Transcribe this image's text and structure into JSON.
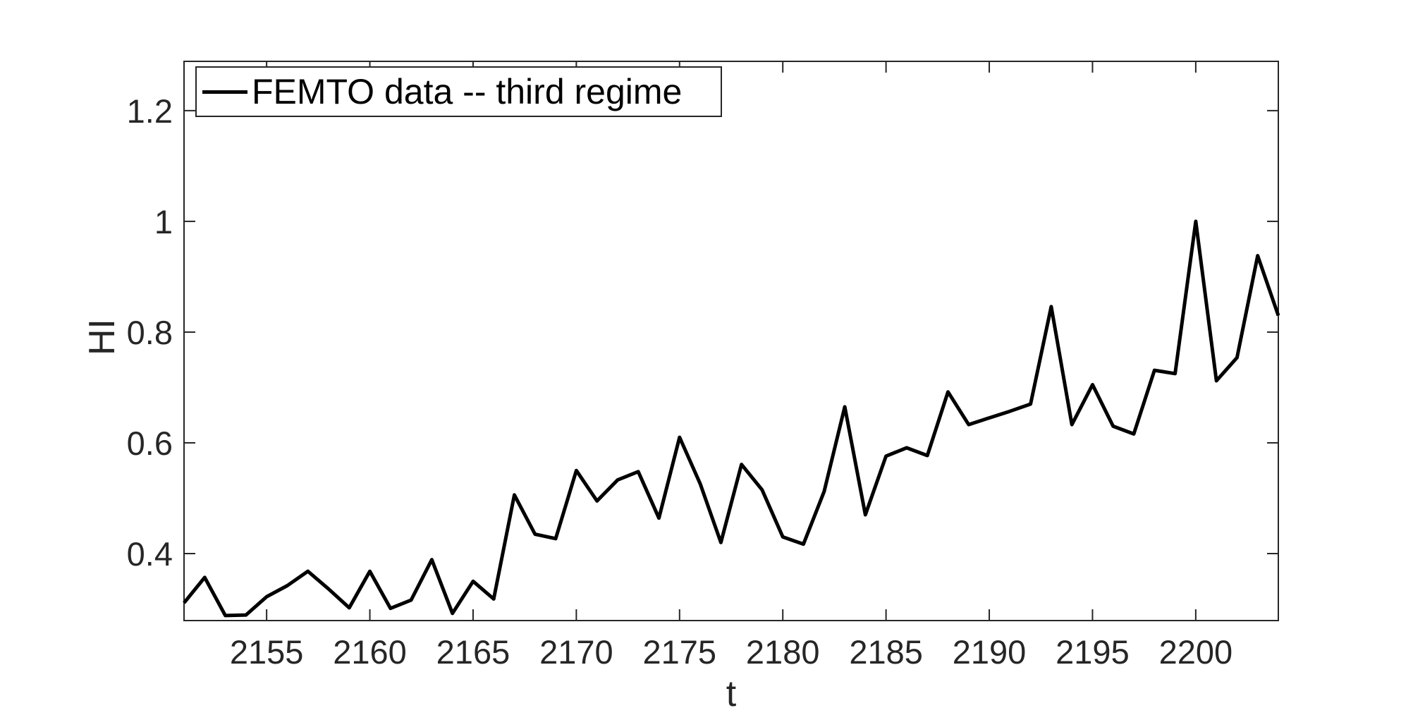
{
  "figure": {
    "background": "#ffffff",
    "axis_color": "#262626",
    "line_color": "#000000"
  },
  "chart_data": {
    "type": "line",
    "title": "",
    "xlabel": "t",
    "ylabel": "HI",
    "legend": {
      "label": "FEMTO data -- third regime",
      "position": "northwest",
      "line_color": "#000000"
    },
    "grid": false,
    "box": true,
    "tick_direction": "in",
    "xlim": [
      2151,
      2204
    ],
    "ylim": [
      0.279,
      1.289
    ],
    "xticks": {
      "values": [
        2155,
        2160,
        2165,
        2170,
        2175,
        2180,
        2185,
        2190,
        2195,
        2200
      ],
      "labels": [
        "2155",
        "2160",
        "2165",
        "2170",
        "2175",
        "2180",
        "2185",
        "2190",
        "2195",
        "2200"
      ]
    },
    "yticks": {
      "values": [
        0.4,
        0.6,
        0.8,
        1,
        1.2
      ],
      "labels": [
        "0.4",
        "0.6",
        "0.8",
        "1",
        "1.2"
      ]
    },
    "series": [
      {
        "name": "FEMTO data -- third regime",
        "color": "#000000",
        "x": [
          2151,
          2152,
          2153,
          2154,
          2155,
          2156,
          2157,
          2158,
          2159,
          2160,
          2161,
          2162,
          2163,
          2164,
          2165,
          2166,
          2167,
          2168,
          2169,
          2170,
          2171,
          2172,
          2173,
          2174,
          2175,
          2176,
          2177,
          2178,
          2179,
          2180,
          2181,
          2182,
          2183,
          2184,
          2185,
          2186,
          2187,
          2188,
          2189,
          2190,
          2191,
          2192,
          2193,
          2194,
          2195,
          2196,
          2197,
          2198,
          2199,
          2200,
          2201,
          2202,
          2203,
          2204
        ],
        "y": [
          0.311,
          0.357,
          0.288,
          0.289,
          0.322,
          0.342,
          0.368,
          0.336,
          0.302,
          0.368,
          0.301,
          0.316,
          0.389,
          0.292,
          0.35,
          0.318,
          0.506,
          0.435,
          0.427,
          0.55,
          0.495,
          0.533,
          0.548,
          0.464,
          0.61,
          0.526,
          0.42,
          0.561,
          0.515,
          0.43,
          0.417,
          0.512,
          0.665,
          0.47,
          0.576,
          0.591,
          0.577,
          0.692,
          0.633,
          0.645,
          0.657,
          0.67,
          0.846,
          0.633,
          0.705,
          0.63,
          0.616,
          0.731,
          0.725,
          1.0,
          0.712,
          0.754,
          0.938,
          0.83
        ]
      }
    ]
  }
}
